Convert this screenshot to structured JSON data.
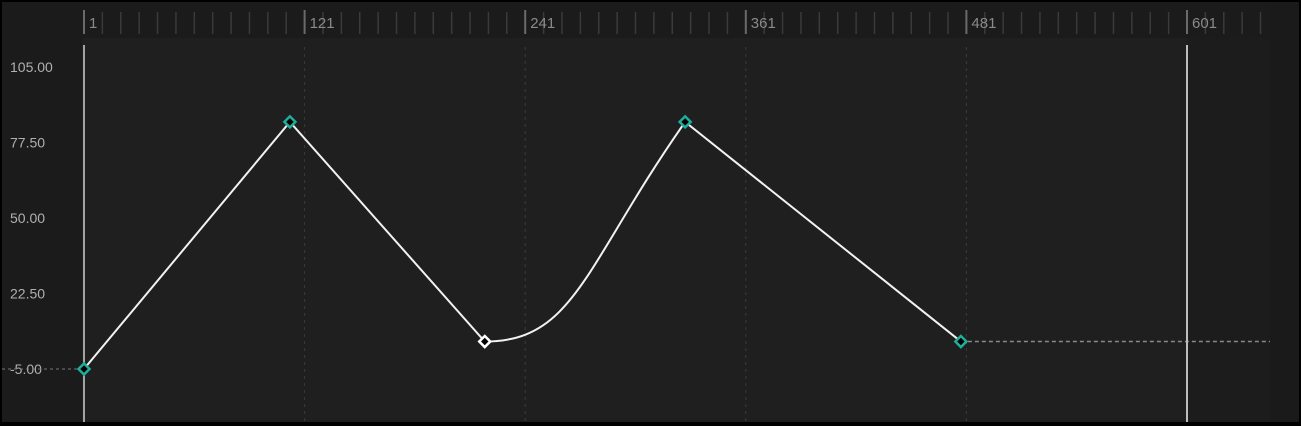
{
  "ruler": {
    "labels": [
      "1",
      "121",
      "241",
      "361",
      "481",
      "601"
    ],
    "frames": [
      1,
      121,
      241,
      361,
      481,
      601
    ],
    "minor_step": 10
  },
  "value_axis": {
    "labels": [
      "105.00",
      "77.50",
      "50.00",
      "22.50",
      "-5.00"
    ],
    "values": [
      105,
      77.5,
      50,
      22.5,
      -5
    ]
  },
  "playhead": {
    "frame": 601
  },
  "keyframes": [
    {
      "frame": 1,
      "value": -5,
      "selected": false,
      "out": "linear"
    },
    {
      "frame": 113,
      "value": 85,
      "selected": false,
      "out": "linear"
    },
    {
      "frame": 219,
      "value": 5,
      "selected": true,
      "out": "ease-out"
    },
    {
      "frame": 328,
      "value": 85,
      "selected": false,
      "out": "linear"
    },
    {
      "frame": 478,
      "value": 5,
      "selected": false,
      "out": "constant"
    }
  ],
  "colors": {
    "background": "#1f1f1f",
    "ruler": "#1b1b1b",
    "curve": "#f2f2f2",
    "keyframe": "#1fae9b",
    "keyframe_selected": "#ffffff",
    "playhead": "#bdbdbd",
    "grid": "#3a3a3a"
  }
}
